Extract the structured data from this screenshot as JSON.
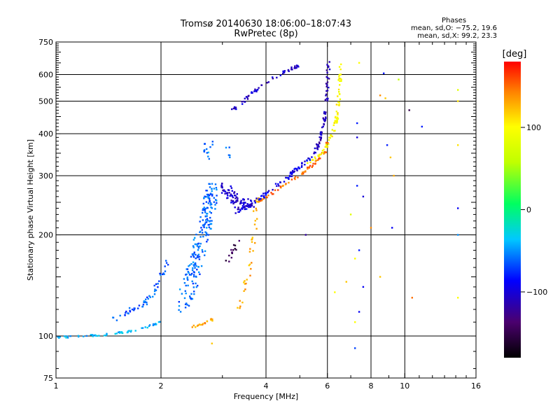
{
  "header": {
    "title_line1": "Tromsø 20140630 18:06:00–18:07:43",
    "title_line2": "RwPretec (8p)"
  },
  "phases_box": {
    "heading": "Phases",
    "line1": "mean, sd,O: −75.2, 19.6",
    "line2": "mean, sd,X:  99.2, 23.3"
  },
  "colorbar": {
    "unit_label": "[deg]",
    "range": [
      -180,
      180
    ],
    "ticks": [
      {
        "value": 100,
        "label": "100"
      },
      {
        "value": 0,
        "label": "0"
      },
      {
        "value": -100,
        "label": "−100"
      }
    ]
  },
  "chart_data": {
    "type": "scatter",
    "xlabel": "Frequency [MHz]",
    "ylabel": "Stationary phase Virtual Height [km]",
    "xscale": "log",
    "yscale": "log",
    "xlim": [
      1,
      16
    ],
    "ylim": [
      75,
      750
    ],
    "xticks": [
      {
        "value": 1,
        "label": "1"
      },
      {
        "value": 2,
        "label": "2"
      },
      {
        "value": 4,
        "label": "4"
      },
      {
        "value": 6,
        "label": "6"
      },
      {
        "value": 8,
        "label": "8"
      },
      {
        "value": 10,
        "label": "10"
      },
      {
        "value": 16,
        "label": "16"
      }
    ],
    "yticks": [
      {
        "value": 75,
        "label": "75"
      },
      {
        "value": 100,
        "label": "100"
      },
      {
        "value": 200,
        "label": "200"
      },
      {
        "value": 300,
        "label": "300"
      },
      {
        "value": 400,
        "label": "400"
      },
      {
        "value": 500,
        "label": "500"
      },
      {
        "value": 600,
        "label": "600"
      },
      {
        "value": 750,
        "label": "750"
      }
    ],
    "x_gridlines": [
      2,
      4,
      6,
      8,
      10,
      16
    ],
    "y_gridlines": [
      100,
      200,
      300,
      400,
      500,
      600
    ],
    "grid": true,
    "color_by": "phase_deg",
    "clusters": [
      {
        "curve": [
          [
            1.0,
            99
          ],
          [
            1.2,
            100
          ],
          [
            1.4,
            101
          ],
          [
            1.6,
            103
          ],
          [
            1.8,
            106
          ],
          [
            2.0,
            110
          ]
        ],
        "phase": -40,
        "n": 60,
        "spread": 0.012
      },
      {
        "curve": [
          [
            1.45,
            112
          ],
          [
            1.6,
            118
          ],
          [
            1.8,
            125
          ],
          [
            1.9,
            135
          ],
          [
            2.0,
            150
          ],
          [
            2.1,
            170
          ]
        ],
        "phase": -65,
        "n": 55,
        "spread": 0.03
      },
      {
        "curve": [
          [
            2.3,
            120
          ],
          [
            2.45,
            150
          ],
          [
            2.6,
            190
          ],
          [
            2.75,
            240
          ],
          [
            2.8,
            280
          ]
        ],
        "phase": -60,
        "n": 210,
        "spread": 0.09
      },
      {
        "curve": [
          [
            2.7,
            330
          ],
          [
            2.72,
            380
          ],
          [
            3.1,
            360
          ],
          [
            3.15,
            320
          ]
        ],
        "phase": -55,
        "n": 18,
        "spread": 0.04
      },
      {
        "curve": [
          [
            2.4,
            106
          ],
          [
            2.6,
            108
          ],
          [
            2.8,
            112
          ]
        ],
        "phase": 135,
        "n": 18,
        "spread": 0.015
      },
      {
        "curve": [
          [
            3.3,
            120
          ],
          [
            3.45,
            135
          ],
          [
            3.6,
            160
          ],
          [
            3.7,
            200
          ],
          [
            3.75,
            250
          ],
          [
            3.85,
            255
          ]
        ],
        "phase": 130,
        "n": 45,
        "spread": 0.03
      },
      {
        "curve": [
          [
            3.8,
            252
          ],
          [
            4.1,
            262
          ],
          [
            4.5,
            280
          ],
          [
            5.0,
            300
          ],
          [
            5.5,
            325
          ],
          [
            5.9,
            355
          ],
          [
            6.0,
            380
          ]
        ],
        "phase": 150,
        "n": 65,
        "spread": 0.018
      },
      {
        "curve": [
          [
            5.3,
            330
          ],
          [
            5.7,
            345
          ],
          [
            6.0,
            370
          ],
          [
            6.2,
            400
          ],
          [
            6.4,
            450
          ],
          [
            6.5,
            550
          ],
          [
            6.55,
            640
          ]
        ],
        "phase": 100,
        "n": 80,
        "spread": 0.02
      },
      {
        "curve": [
          [
            3.3,
            235
          ],
          [
            3.6,
            245
          ],
          [
            4.0,
            265
          ],
          [
            4.5,
            290
          ],
          [
            5.0,
            320
          ],
          [
            5.5,
            350
          ]
        ],
        "phase": -95,
        "n": 90,
        "spread": 0.03
      },
      {
        "curve": [
          [
            5.5,
            350
          ],
          [
            5.7,
            380
          ],
          [
            5.85,
            430
          ],
          [
            5.95,
            500
          ],
          [
            6.0,
            570
          ],
          [
            6.05,
            650
          ]
        ],
        "phase": -110,
        "n": 70,
        "spread": 0.02
      },
      {
        "curve": [
          [
            3.0,
            280
          ],
          [
            3.2,
            260
          ],
          [
            3.4,
            245
          ],
          [
            3.6,
            250
          ]
        ],
        "phase": -105,
        "n": 80,
        "spread": 0.07
      },
      {
        "curve": [
          [
            3.1,
            165
          ],
          [
            3.2,
            180
          ],
          [
            3.3,
            190
          ]
        ],
        "phase": -150,
        "n": 14,
        "spread": 0.04
      },
      {
        "curve": [
          [
            3.2,
            470
          ],
          [
            3.6,
            520
          ],
          [
            4.0,
            570
          ],
          [
            4.5,
            610
          ],
          [
            5.0,
            640
          ]
        ],
        "phase": -105,
        "n": 55,
        "spread": 0.02
      }
    ],
    "scattered_points": [
      [
        7.4,
        650,
        100
      ],
      [
        8.7,
        605,
        -80
      ],
      [
        9.6,
        580,
        60
      ],
      [
        10.3,
        470,
        -150
      ],
      [
        11.2,
        420,
        -80
      ],
      [
        14.2,
        540,
        80
      ],
      [
        14.2,
        500,
        110
      ],
      [
        8.5,
        520,
        140
      ],
      [
        8.8,
        510,
        120
      ],
      [
        7.3,
        430,
        -80
      ],
      [
        7.3,
        390,
        -100
      ],
      [
        8.9,
        370,
        -80
      ],
      [
        9.1,
        340,
        120
      ],
      [
        9.3,
        300,
        130
      ],
      [
        14.2,
        370,
        110
      ],
      [
        7.3,
        280,
        -80
      ],
      [
        7.6,
        260,
        -100
      ],
      [
        7.0,
        230,
        80
      ],
      [
        8.0,
        210,
        140
      ],
      [
        9.2,
        210,
        -90
      ],
      [
        14.2,
        240,
        -90
      ],
      [
        14.2,
        200,
        -50
      ],
      [
        7.4,
        180,
        -80
      ],
      [
        7.2,
        170,
        100
      ],
      [
        8.5,
        150,
        120
      ],
      [
        7.6,
        140,
        -90
      ],
      [
        6.8,
        145,
        120
      ],
      [
        7.4,
        118,
        -90
      ],
      [
        7.2,
        110,
        100
      ],
      [
        10.5,
        130,
        150
      ],
      [
        14.2,
        130,
        100
      ],
      [
        7.2,
        92,
        -70
      ],
      [
        5.2,
        200,
        -120
      ],
      [
        6.3,
        135,
        100
      ],
      [
        2.8,
        95,
        120
      ]
    ]
  }
}
